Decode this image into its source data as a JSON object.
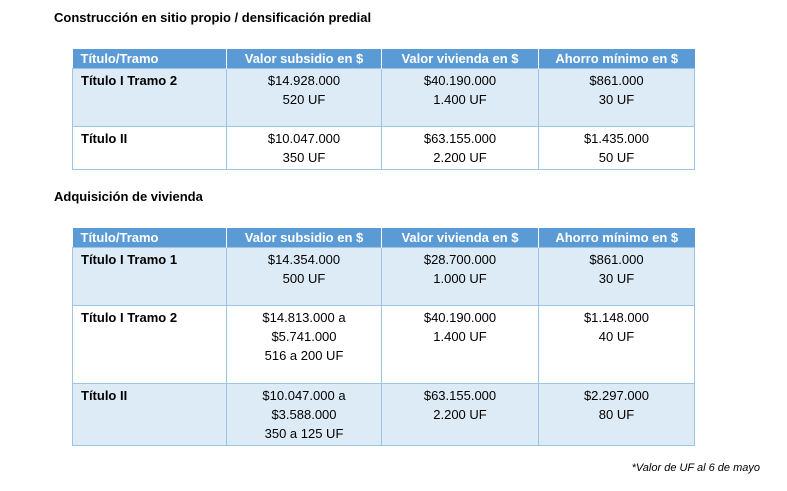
{
  "section1": {
    "title": "Construcción en sitio propio / densificación predial",
    "headers": [
      "Título/Tramo",
      "Valor subsidio en $",
      "Valor vivienda en $",
      "Ahorro mínimo en $"
    ],
    "rows": [
      {
        "tramo": "Título I Tramo 2",
        "subsidio": [
          "$14.928.000",
          "520 UF"
        ],
        "vivienda": [
          "$40.190.000",
          "1.400 UF"
        ],
        "ahorro": [
          "$861.000",
          "30 UF"
        ]
      },
      {
        "tramo": "Título II",
        "subsidio": [
          "$10.047.000",
          "350 UF"
        ],
        "vivienda": [
          "$63.155.000",
          "2.200 UF"
        ],
        "ahorro": [
          "$1.435.000",
          "50 UF"
        ]
      }
    ]
  },
  "section2": {
    "title": "Adquisición de vivienda",
    "headers": [
      "Título/Tramo",
      "Valor subsidio en $",
      "Valor vivienda en $",
      "Ahorro mínimo en $"
    ],
    "rows": [
      {
        "tramo": "Título I Tramo 1",
        "subsidio": [
          "$14.354.000",
          "500 UF"
        ],
        "vivienda": [
          "$28.700.000",
          "1.000 UF"
        ],
        "ahorro": [
          "$861.000",
          "30 UF"
        ]
      },
      {
        "tramo": "Título I Tramo 2",
        "subsidio": [
          "$14.813.000 a",
          "$5.741.000",
          "516 a 200 UF"
        ],
        "vivienda": [
          "$40.190.000",
          "1.400 UF"
        ],
        "ahorro": [
          "$1.148.000",
          "40 UF"
        ]
      },
      {
        "tramo": "Título II",
        "subsidio": [
          "$10.047.000 a",
          "$3.588.000",
          "350 a 125 UF"
        ],
        "vivienda": [
          "$63.155.000",
          "2.200 UF"
        ],
        "ahorro": [
          "$2.297.000",
          "80  UF"
        ]
      }
    ]
  },
  "footnote": "*Valor de UF al 6 de mayo"
}
